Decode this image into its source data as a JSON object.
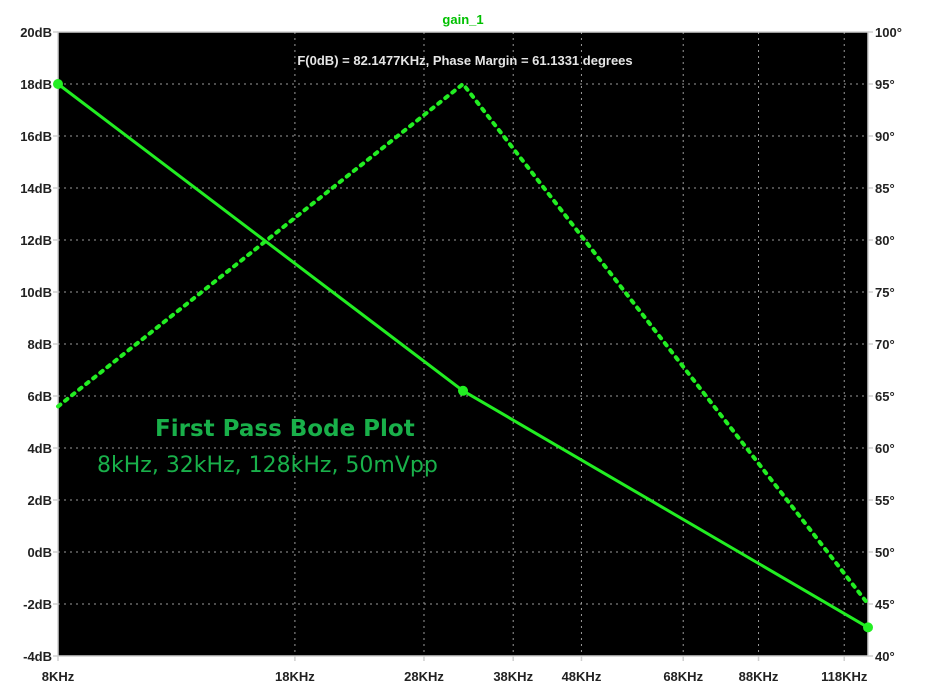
{
  "chart_data": {
    "type": "line",
    "title": "gain_1",
    "annotation": "F(0dB) = 82.1477KHz, Phase Margin = 61.1331 degrees",
    "overlay_title": "First Pass Bode Plot",
    "overlay_subtitle": "8kHz, 32kHz, 128kHz, 50mVpp",
    "x_ticks": [
      "8KHz",
      "18KHz",
      "28KHz",
      "38KHz",
      "48KHz",
      "68KHz",
      "88KHz",
      "118KHz"
    ],
    "x_tick_values": [
      8,
      18,
      28,
      38,
      48,
      68,
      88,
      118
    ],
    "x_scale": "log",
    "xlim": [
      8,
      128
    ],
    "y_left_ticks": [
      "20dB",
      "18dB",
      "16dB",
      "14dB",
      "12dB",
      "10dB",
      "8dB",
      "6dB",
      "4dB",
      "2dB",
      "0dB",
      "-2dB",
      "-4dB"
    ],
    "ylim_left": [
      -4,
      20
    ],
    "y_right_ticks": [
      "100°",
      "95°",
      "90°",
      "85°",
      "80°",
      "75°",
      "70°",
      "65°",
      "60°",
      "55°",
      "50°",
      "45°",
      "40°"
    ],
    "ylim_right": [
      40,
      100
    ],
    "grid": true,
    "series": [
      {
        "axis": "left",
        "style": "solid",
        "markers": true,
        "x": [
          8,
          32,
          128
        ],
        "y": [
          18,
          6.2,
          -2.9
        ]
      },
      {
        "axis": "right",
        "style": "dotted",
        "markers": false,
        "x": [
          8,
          32,
          128
        ],
        "y": [
          64,
          95,
          45
        ]
      }
    ],
    "colors": {
      "background": "#000000",
      "trace": "#22ee22",
      "grid": "#9a9a9a",
      "frame": "#cfcfcf",
      "tick_text": "#222222",
      "overlay_text": "#19b04a"
    }
  }
}
